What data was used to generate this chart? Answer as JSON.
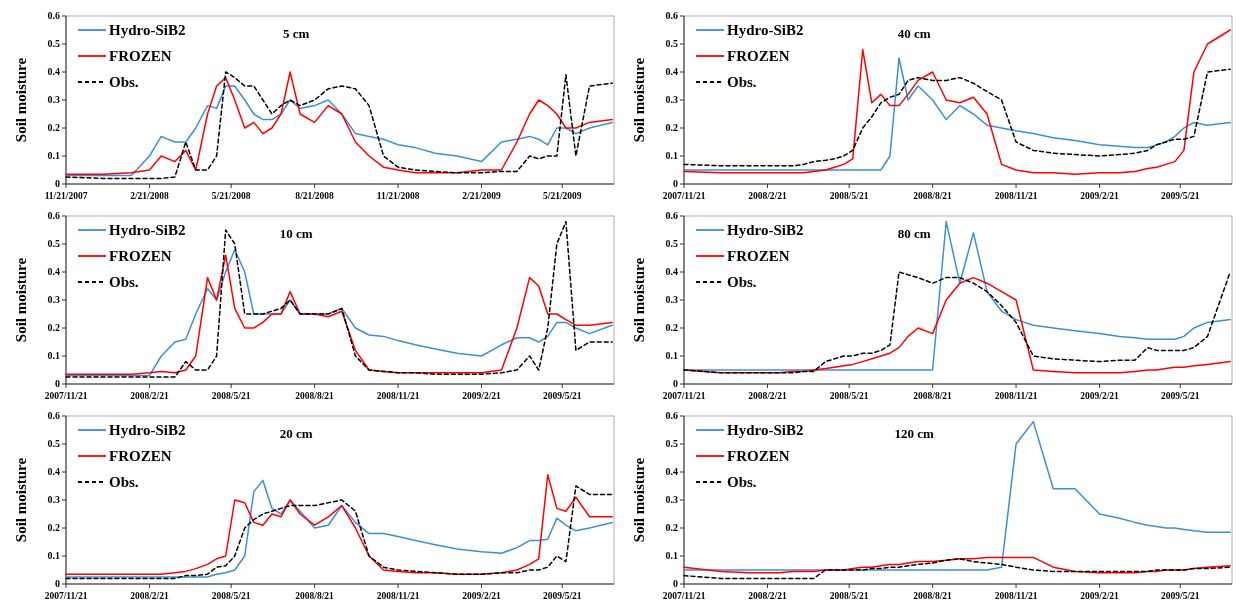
{
  "chart_data": [
    {
      "type": "line",
      "title": "5 cm",
      "ylabel": "Soil moisture",
      "legend": "top left",
      "ylim": [
        0,
        0.6
      ],
      "yticks": [
        0,
        0.1,
        0.2,
        0.3,
        0.4,
        0.5,
        0.6
      ],
      "xlim": [
        "2007-11-21",
        "2009-07-17"
      ],
      "xticks": [
        {
          "value": "2007-11-21",
          "label": "11/21/2007"
        },
        {
          "value": "2008-02-21",
          "label": "2/21/2008"
        },
        {
          "value": "2008-05-21",
          "label": "5/21/2008"
        },
        {
          "value": "2008-08-21",
          "label": "8/21/2008"
        },
        {
          "value": "2008-11-21",
          "label": "11/21/2008"
        },
        {
          "value": "2009-02-21",
          "label": "2/21/2009"
        },
        {
          "value": "2009-05-21",
          "label": "5/21/2009"
        }
      ],
      "x": [
        "2007-11-21",
        "2008-01-01",
        "2008-02-01",
        "2008-02-21",
        "2008-03-05",
        "2008-03-20",
        "2008-04-01",
        "2008-04-12",
        "2008-04-25",
        "2008-05-05",
        "2008-05-15",
        "2008-05-25",
        "2008-06-05",
        "2008-06-15",
        "2008-06-25",
        "2008-07-05",
        "2008-07-15",
        "2008-07-25",
        "2008-08-05",
        "2008-08-21",
        "2008-09-05",
        "2008-09-20",
        "2008-10-05",
        "2008-10-20",
        "2008-11-05",
        "2008-11-21",
        "2008-12-10",
        "2009-01-01",
        "2009-01-25",
        "2009-02-21",
        "2009-03-15",
        "2009-04-01",
        "2009-04-15",
        "2009-04-25",
        "2009-05-05",
        "2009-05-15",
        "2009-05-25",
        "2009-06-05",
        "2009-06-20",
        "2009-07-15"
      ],
      "series": [
        {
          "name": "Hydro-SiB2",
          "color": "#3c8fd6",
          "line_style": "solid",
          "values": [
            0.03,
            0.03,
            0.03,
            0.1,
            0.17,
            0.15,
            0.15,
            0.2,
            0.28,
            0.27,
            0.35,
            0.35,
            0.3,
            0.25,
            0.23,
            0.23,
            0.25,
            0.3,
            0.27,
            0.28,
            0.3,
            0.25,
            0.18,
            0.17,
            0.16,
            0.14,
            0.13,
            0.11,
            0.1,
            0.08,
            0.15,
            0.16,
            0.17,
            0.16,
            0.14,
            0.2,
            0.2,
            0.18,
            0.2,
            0.22
          ]
        },
        {
          "name": "FROZEN",
          "color": "#ff0000",
          "line_style": "solid",
          "values": [
            0.035,
            0.035,
            0.04,
            0.05,
            0.1,
            0.08,
            0.12,
            0.05,
            0.25,
            0.35,
            0.38,
            0.3,
            0.2,
            0.22,
            0.18,
            0.2,
            0.25,
            0.4,
            0.25,
            0.22,
            0.28,
            0.25,
            0.15,
            0.1,
            0.06,
            0.05,
            0.04,
            0.04,
            0.04,
            0.05,
            0.05,
            0.15,
            0.25,
            0.3,
            0.28,
            0.25,
            0.2,
            0.2,
            0.22,
            0.23
          ]
        },
        {
          "name": "Obs.",
          "color": "#000000",
          "line_style": "dashed",
          "values": [
            0.025,
            0.02,
            0.02,
            0.02,
            0.02,
            0.025,
            0.15,
            0.05,
            0.05,
            0.1,
            0.4,
            0.38,
            0.35,
            0.35,
            0.3,
            0.25,
            0.28,
            0.3,
            0.28,
            0.3,
            0.34,
            0.35,
            0.34,
            0.28,
            0.1,
            0.06,
            0.05,
            0.045,
            0.04,
            0.04,
            0.045,
            0.045,
            0.1,
            0.09,
            0.1,
            0.1,
            0.39,
            0.1,
            0.35,
            0.36
          ]
        }
      ]
    },
    {
      "type": "line",
      "title": "40 cm",
      "ylabel": "Soil moisture",
      "legend": "top left",
      "ylim": [
        0,
        0.6
      ],
      "yticks": [
        0,
        0.1,
        0.2,
        0.3,
        0.4,
        0.5,
        0.6
      ],
      "xlim": [
        "2007-11-21",
        "2009-07-17"
      ],
      "xticks": [
        {
          "value": "2007-11-21",
          "label": "2007/11/21"
        },
        {
          "value": "2008-02-21",
          "label": "2008/2/21"
        },
        {
          "value": "2008-05-21",
          "label": "2008/5/21"
        },
        {
          "value": "2008-08-21",
          "label": "2008/8/21"
        },
        {
          "value": "2008-11-21",
          "label": "2008/11/21"
        },
        {
          "value": "2009-02-21",
          "label": "2009/2/21"
        },
        {
          "value": "2009-05-21",
          "label": "2009/5/21"
        }
      ],
      "x": [
        "2007-11-21",
        "2008-01-01",
        "2008-02-01",
        "2008-02-21",
        "2008-03-05",
        "2008-03-20",
        "2008-04-01",
        "2008-04-12",
        "2008-04-25",
        "2008-05-05",
        "2008-05-15",
        "2008-05-25",
        "2008-06-05",
        "2008-06-15",
        "2008-06-25",
        "2008-07-05",
        "2008-07-15",
        "2008-07-25",
        "2008-08-05",
        "2008-08-21",
        "2008-09-05",
        "2008-09-20",
        "2008-10-05",
        "2008-10-20",
        "2008-11-05",
        "2008-11-21",
        "2008-12-10",
        "2009-01-01",
        "2009-01-25",
        "2009-02-21",
        "2009-03-15",
        "2009-04-01",
        "2009-04-15",
        "2009-04-25",
        "2009-05-05",
        "2009-05-15",
        "2009-05-25",
        "2009-06-05",
        "2009-06-20",
        "2009-07-15"
      ],
      "series": [
        {
          "name": "Hydro-SiB2",
          "color": "#3c8fd6",
          "line_style": "solid",
          "values": [
            0.05,
            0.05,
            0.05,
            0.05,
            0.05,
            0.05,
            0.05,
            0.05,
            0.05,
            0.05,
            0.05,
            0.05,
            0.05,
            0.05,
            0.05,
            0.1,
            0.45,
            0.3,
            0.35,
            0.3,
            0.23,
            0.28,
            0.25,
            0.21,
            0.2,
            0.19,
            0.18,
            0.165,
            0.155,
            0.14,
            0.135,
            0.13,
            0.13,
            0.14,
            0.15,
            0.17,
            0.2,
            0.22,
            0.21,
            0.22
          ]
        },
        {
          "name": "FROZEN",
          "color": "#ff0000",
          "line_style": "solid",
          "values": [
            0.045,
            0.04,
            0.04,
            0.04,
            0.04,
            0.04,
            0.04,
            0.045,
            0.05,
            0.06,
            0.07,
            0.09,
            0.48,
            0.29,
            0.32,
            0.28,
            0.28,
            0.32,
            0.37,
            0.4,
            0.3,
            0.29,
            0.31,
            0.25,
            0.07,
            0.05,
            0.04,
            0.04,
            0.035,
            0.04,
            0.04,
            0.045,
            0.055,
            0.06,
            0.07,
            0.08,
            0.12,
            0.4,
            0.5,
            0.55
          ]
        },
        {
          "name": "Obs.",
          "color": "#000000",
          "line_style": "dashed",
          "values": [
            0.07,
            0.065,
            0.065,
            0.065,
            0.065,
            0.065,
            0.07,
            0.08,
            0.085,
            0.09,
            0.1,
            0.12,
            0.2,
            0.24,
            0.29,
            0.31,
            0.32,
            0.37,
            0.38,
            0.37,
            0.37,
            0.38,
            0.36,
            0.33,
            0.3,
            0.15,
            0.12,
            0.11,
            0.105,
            0.1,
            0.105,
            0.11,
            0.12,
            0.14,
            0.15,
            0.16,
            0.16,
            0.17,
            0.4,
            0.41
          ]
        }
      ]
    },
    {
      "type": "line",
      "title": "10 cm",
      "ylabel": "Soil moisture",
      "legend": "top left",
      "ylim": [
        0,
        0.6
      ],
      "yticks": [
        0,
        0.1,
        0.2,
        0.3,
        0.4,
        0.5,
        0.6
      ],
      "xlim": [
        "2007-11-21",
        "2009-07-17"
      ],
      "xticks": [
        {
          "value": "2007-11-21",
          "label": "2007/11/21"
        },
        {
          "value": "2008-02-21",
          "label": "2008/2/21"
        },
        {
          "value": "2008-05-21",
          "label": "2008/5/21"
        },
        {
          "value": "2008-08-21",
          "label": "2008/8/21"
        },
        {
          "value": "2008-11-21",
          "label": "2008/11/21"
        },
        {
          "value": "2009-02-21",
          "label": "2009/2/21"
        },
        {
          "value": "2009-05-21",
          "label": "2009/5/21"
        }
      ],
      "x": [
        "2007-11-21",
        "2008-01-01",
        "2008-02-01",
        "2008-02-21",
        "2008-03-05",
        "2008-03-20",
        "2008-04-01",
        "2008-04-12",
        "2008-04-25",
        "2008-05-05",
        "2008-05-15",
        "2008-05-25",
        "2008-06-05",
        "2008-06-15",
        "2008-06-25",
        "2008-07-05",
        "2008-07-15",
        "2008-07-25",
        "2008-08-05",
        "2008-08-21",
        "2008-09-05",
        "2008-09-20",
        "2008-10-05",
        "2008-10-20",
        "2008-11-05",
        "2008-11-21",
        "2008-12-10",
        "2009-01-01",
        "2009-01-25",
        "2009-02-21",
        "2009-03-15",
        "2009-04-01",
        "2009-04-15",
        "2009-04-25",
        "2009-05-05",
        "2009-05-15",
        "2009-05-25",
        "2009-06-05",
        "2009-06-20",
        "2009-07-15"
      ],
      "series": [
        {
          "name": "Hydro-SiB2",
          "color": "#3c8fd6",
          "line_style": "solid",
          "values": [
            0.03,
            0.03,
            0.03,
            0.03,
            0.1,
            0.15,
            0.16,
            0.25,
            0.34,
            0.3,
            0.4,
            0.48,
            0.4,
            0.25,
            0.25,
            0.25,
            0.25,
            0.3,
            0.25,
            0.25,
            0.25,
            0.27,
            0.2,
            0.175,
            0.17,
            0.155,
            0.14,
            0.125,
            0.11,
            0.1,
            0.14,
            0.165,
            0.165,
            0.15,
            0.17,
            0.22,
            0.22,
            0.2,
            0.18,
            0.21
          ]
        },
        {
          "name": "FROZEN",
          "color": "#ff0000",
          "line_style": "solid",
          "values": [
            0.035,
            0.035,
            0.035,
            0.04,
            0.045,
            0.04,
            0.05,
            0.1,
            0.38,
            0.3,
            0.46,
            0.27,
            0.2,
            0.2,
            0.22,
            0.25,
            0.25,
            0.33,
            0.25,
            0.25,
            0.24,
            0.26,
            0.12,
            0.05,
            0.045,
            0.04,
            0.04,
            0.04,
            0.04,
            0.04,
            0.05,
            0.2,
            0.38,
            0.35,
            0.25,
            0.25,
            0.23,
            0.21,
            0.21,
            0.22
          ]
        },
        {
          "name": "Obs.",
          "color": "#000000",
          "line_style": "dashed",
          "values": [
            0.025,
            0.025,
            0.025,
            0.025,
            0.025,
            0.025,
            0.08,
            0.05,
            0.05,
            0.1,
            0.55,
            0.5,
            0.25,
            0.25,
            0.25,
            0.26,
            0.27,
            0.3,
            0.25,
            0.25,
            0.25,
            0.27,
            0.1,
            0.05,
            0.045,
            0.04,
            0.04,
            0.035,
            0.035,
            0.035,
            0.04,
            0.05,
            0.1,
            0.05,
            0.2,
            0.5,
            0.58,
            0.12,
            0.15,
            0.15
          ]
        }
      ]
    },
    {
      "type": "line",
      "title": "80 cm",
      "ylabel": "Soil moisture",
      "legend": "top left",
      "ylim": [
        0,
        0.6
      ],
      "yticks": [
        0,
        0.1,
        0.2,
        0.3,
        0.4,
        0.5,
        0.6
      ],
      "xlim": [
        "2007-11-21",
        "2009-07-17"
      ],
      "xticks": [
        {
          "value": "2007-11-21",
          "label": "2007/11/21"
        },
        {
          "value": "2008-02-21",
          "label": "2008/2/21"
        },
        {
          "value": "2008-05-21",
          "label": "2008/5/21"
        },
        {
          "value": "2008-08-21",
          "label": "2008/8/21"
        },
        {
          "value": "2008-11-21",
          "label": "2008/11/21"
        },
        {
          "value": "2009-02-21",
          "label": "2009/2/21"
        },
        {
          "value": "2009-05-21",
          "label": "2009/5/21"
        }
      ],
      "x": [
        "2007-11-21",
        "2008-01-01",
        "2008-02-01",
        "2008-02-21",
        "2008-03-05",
        "2008-03-20",
        "2008-04-01",
        "2008-04-12",
        "2008-04-25",
        "2008-05-05",
        "2008-05-15",
        "2008-05-25",
        "2008-06-05",
        "2008-06-15",
        "2008-06-25",
        "2008-07-05",
        "2008-07-15",
        "2008-07-25",
        "2008-08-05",
        "2008-08-21",
        "2008-09-05",
        "2008-09-20",
        "2008-10-05",
        "2008-10-20",
        "2008-11-05",
        "2008-11-21",
        "2008-12-10",
        "2009-01-01",
        "2009-01-25",
        "2009-02-21",
        "2009-03-15",
        "2009-04-01",
        "2009-04-15",
        "2009-04-25",
        "2009-05-05",
        "2009-05-15",
        "2009-05-25",
        "2009-06-05",
        "2009-06-20",
        "2009-07-15"
      ],
      "series": [
        {
          "name": "Hydro-SiB2",
          "color": "#3c8fd6",
          "line_style": "solid",
          "values": [
            0.05,
            0.05,
            0.05,
            0.05,
            0.05,
            0.05,
            0.05,
            0.05,
            0.05,
            0.05,
            0.05,
            0.05,
            0.05,
            0.05,
            0.05,
            0.05,
            0.05,
            0.05,
            0.05,
            0.05,
            0.58,
            0.36,
            0.54,
            0.33,
            0.26,
            0.23,
            0.21,
            0.2,
            0.19,
            0.18,
            0.17,
            0.165,
            0.16,
            0.16,
            0.16,
            0.16,
            0.17,
            0.2,
            0.22,
            0.23
          ]
        },
        {
          "name": "FROZEN",
          "color": "#ff0000",
          "line_style": "solid",
          "values": [
            0.05,
            0.04,
            0.04,
            0.04,
            0.04,
            0.045,
            0.045,
            0.05,
            0.055,
            0.06,
            0.065,
            0.07,
            0.08,
            0.09,
            0.1,
            0.11,
            0.13,
            0.17,
            0.2,
            0.18,
            0.3,
            0.36,
            0.38,
            0.36,
            0.33,
            0.3,
            0.05,
            0.045,
            0.04,
            0.04,
            0.04,
            0.045,
            0.05,
            0.05,
            0.055,
            0.06,
            0.06,
            0.065,
            0.07,
            0.08
          ]
        },
        {
          "name": "Obs.",
          "color": "#000000",
          "line_style": "dashed",
          "values": [
            0.05,
            0.04,
            0.04,
            0.04,
            0.04,
            0.04,
            0.045,
            0.045,
            0.08,
            0.09,
            0.1,
            0.1,
            0.11,
            0.11,
            0.12,
            0.14,
            0.4,
            0.39,
            0.38,
            0.36,
            0.38,
            0.38,
            0.36,
            0.33,
            0.28,
            0.22,
            0.1,
            0.09,
            0.085,
            0.08,
            0.085,
            0.085,
            0.13,
            0.12,
            0.12,
            0.12,
            0.12,
            0.13,
            0.17,
            0.4
          ]
        }
      ]
    },
    {
      "type": "line",
      "title": "20 cm",
      "ylabel": "Soil moisture",
      "legend": "top left",
      "ylim": [
        0,
        0.6
      ],
      "yticks": [
        0,
        0.1,
        0.2,
        0.3,
        0.4,
        0.5,
        0.6
      ],
      "xlim": [
        "2007-11-21",
        "2009-07-17"
      ],
      "xticks": [
        {
          "value": "2007-11-21",
          "label": "2007/11/21"
        },
        {
          "value": "2008-02-21",
          "label": "2008/2/21"
        },
        {
          "value": "2008-05-21",
          "label": "2008/5/21"
        },
        {
          "value": "2008-08-21",
          "label": "2008/8/21"
        },
        {
          "value": "2008-11-21",
          "label": "2008/11/21"
        },
        {
          "value": "2009-02-21",
          "label": "2009/2/21"
        },
        {
          "value": "2009-05-21",
          "label": "2009/5/21"
        }
      ],
      "x": [
        "2007-11-21",
        "2008-01-01",
        "2008-02-01",
        "2008-02-21",
        "2008-03-05",
        "2008-03-20",
        "2008-04-01",
        "2008-04-12",
        "2008-04-25",
        "2008-05-05",
        "2008-05-15",
        "2008-05-25",
        "2008-06-05",
        "2008-06-15",
        "2008-06-25",
        "2008-07-05",
        "2008-07-15",
        "2008-07-25",
        "2008-08-05",
        "2008-08-21",
        "2008-09-05",
        "2008-09-20",
        "2008-10-05",
        "2008-10-20",
        "2008-11-05",
        "2008-11-21",
        "2008-12-10",
        "2009-01-01",
        "2009-01-25",
        "2009-02-21",
        "2009-03-15",
        "2009-04-01",
        "2009-04-15",
        "2009-04-25",
        "2009-05-05",
        "2009-05-15",
        "2009-05-25",
        "2009-06-05",
        "2009-06-20",
        "2009-07-15"
      ],
      "series": [
        {
          "name": "Hydro-SiB2",
          "color": "#3c8fd6",
          "line_style": "solid",
          "values": [
            0.025,
            0.025,
            0.025,
            0.025,
            0.025,
            0.025,
            0.025,
            0.025,
            0.025,
            0.035,
            0.04,
            0.05,
            0.1,
            0.33,
            0.37,
            0.27,
            0.25,
            0.3,
            0.26,
            0.2,
            0.21,
            0.28,
            0.22,
            0.18,
            0.18,
            0.17,
            0.155,
            0.14,
            0.125,
            0.115,
            0.11,
            0.13,
            0.155,
            0.155,
            0.16,
            0.235,
            0.21,
            0.19,
            0.2,
            0.22
          ]
        },
        {
          "name": "FROZEN",
          "color": "#ff0000",
          "line_style": "solid",
          "values": [
            0.035,
            0.035,
            0.035,
            0.035,
            0.035,
            0.04,
            0.045,
            0.055,
            0.07,
            0.09,
            0.1,
            0.3,
            0.29,
            0.22,
            0.21,
            0.25,
            0.24,
            0.3,
            0.25,
            0.21,
            0.24,
            0.28,
            0.2,
            0.1,
            0.05,
            0.045,
            0.04,
            0.04,
            0.035,
            0.035,
            0.04,
            0.05,
            0.07,
            0.09,
            0.39,
            0.27,
            0.26,
            0.31,
            0.24,
            0.24
          ]
        },
        {
          "name": "Obs.",
          "color": "#000000",
          "line_style": "dashed",
          "values": [
            0.02,
            0.02,
            0.02,
            0.02,
            0.02,
            0.02,
            0.03,
            0.03,
            0.035,
            0.06,
            0.065,
            0.1,
            0.2,
            0.23,
            0.25,
            0.26,
            0.27,
            0.28,
            0.28,
            0.28,
            0.29,
            0.3,
            0.26,
            0.1,
            0.06,
            0.05,
            0.045,
            0.04,
            0.035,
            0.035,
            0.04,
            0.04,
            0.05,
            0.05,
            0.06,
            0.1,
            0.08,
            0.35,
            0.32,
            0.32
          ]
        }
      ]
    },
    {
      "type": "line",
      "title": "120 cm",
      "ylabel": "Soil moisture",
      "legend": "top left",
      "ylim": [
        0,
        0.6
      ],
      "yticks": [
        0,
        0.1,
        0.2,
        0.3,
        0.4,
        0.5,
        0.6
      ],
      "xlim": [
        "2007-11-21",
        "2009-07-17"
      ],
      "xticks": [
        {
          "value": "2007-11-21",
          "label": "2007/11/21"
        },
        {
          "value": "2008-02-21",
          "label": "2008/2/21"
        },
        {
          "value": "2008-05-21",
          "label": "2008/5/21"
        },
        {
          "value": "2008-08-21",
          "label": "2008/8/21"
        },
        {
          "value": "2008-11-21",
          "label": "2008/11/21"
        },
        {
          "value": "2009-02-21",
          "label": "2009/2/21"
        },
        {
          "value": "2009-05-21",
          "label": "2009/5/21"
        }
      ],
      "x": [
        "2007-11-21",
        "2008-01-01",
        "2008-02-01",
        "2008-02-21",
        "2008-03-05",
        "2008-03-20",
        "2008-04-01",
        "2008-04-12",
        "2008-04-25",
        "2008-05-05",
        "2008-05-15",
        "2008-05-25",
        "2008-06-05",
        "2008-06-15",
        "2008-06-25",
        "2008-07-05",
        "2008-07-15",
        "2008-07-25",
        "2008-08-05",
        "2008-08-21",
        "2008-09-05",
        "2008-09-20",
        "2008-10-05",
        "2008-10-20",
        "2008-11-05",
        "2008-11-21",
        "2008-12-10",
        "2009-01-01",
        "2009-01-25",
        "2009-02-21",
        "2009-03-15",
        "2009-04-01",
        "2009-04-15",
        "2009-04-25",
        "2009-05-05",
        "2009-05-15",
        "2009-05-25",
        "2009-06-05",
        "2009-06-20",
        "2009-07-15"
      ],
      "series": [
        {
          "name": "Hydro-SiB2",
          "color": "#3c8fd6",
          "line_style": "solid",
          "values": [
            0.05,
            0.05,
            0.05,
            0.05,
            0.05,
            0.05,
            0.05,
            0.05,
            0.05,
            0.05,
            0.05,
            0.05,
            0.05,
            0.05,
            0.05,
            0.05,
            0.05,
            0.05,
            0.05,
            0.05,
            0.05,
            0.05,
            0.05,
            0.05,
            0.06,
            0.5,
            0.58,
            0.34,
            0.34,
            0.25,
            0.235,
            0.22,
            0.21,
            0.205,
            0.2,
            0.2,
            0.195,
            0.19,
            0.185,
            0.185
          ]
        },
        {
          "name": "FROZEN",
          "color": "#ff0000",
          "line_style": "solid",
          "values": [
            0.06,
            0.045,
            0.04,
            0.04,
            0.04,
            0.045,
            0.045,
            0.045,
            0.05,
            0.05,
            0.05,
            0.055,
            0.06,
            0.06,
            0.065,
            0.07,
            0.07,
            0.075,
            0.08,
            0.08,
            0.085,
            0.09,
            0.09,
            0.095,
            0.095,
            0.095,
            0.095,
            0.06,
            0.045,
            0.04,
            0.04,
            0.04,
            0.045,
            0.045,
            0.05,
            0.05,
            0.05,
            0.055,
            0.06,
            0.065
          ]
        },
        {
          "name": "Obs.",
          "color": "#000000",
          "line_style": "dashed",
          "values": [
            0.03,
            0.02,
            0.02,
            0.02,
            0.02,
            0.02,
            0.02,
            0.02,
            0.05,
            0.05,
            0.05,
            0.05,
            0.05,
            0.055,
            0.055,
            0.06,
            0.06,
            0.065,
            0.07,
            0.075,
            0.085,
            0.09,
            0.08,
            0.075,
            0.07,
            0.06,
            0.05,
            0.045,
            0.045,
            0.045,
            0.045,
            0.045,
            0.045,
            0.05,
            0.05,
            0.05,
            0.05,
            0.055,
            0.055,
            0.06
          ]
        }
      ]
    }
  ]
}
